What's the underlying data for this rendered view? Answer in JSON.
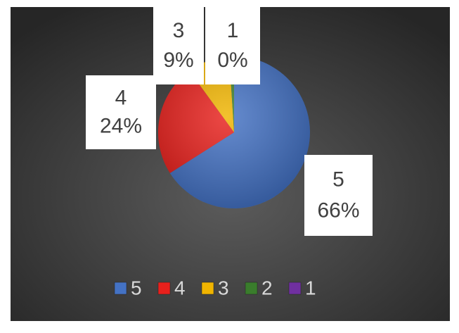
{
  "chart_data": {
    "type": "pie",
    "categories": [
      "5",
      "4",
      "3",
      "2",
      "1"
    ],
    "values": [
      66,
      24,
      9,
      1,
      0
    ],
    "value_labels": [
      "66%",
      "24%",
      "9%",
      null,
      "0%"
    ],
    "colors": [
      "#4472c4",
      "#e8201c",
      "#f0b400",
      "#3a7d2c",
      "#7030a0"
    ],
    "legend": "bottom"
  }
}
